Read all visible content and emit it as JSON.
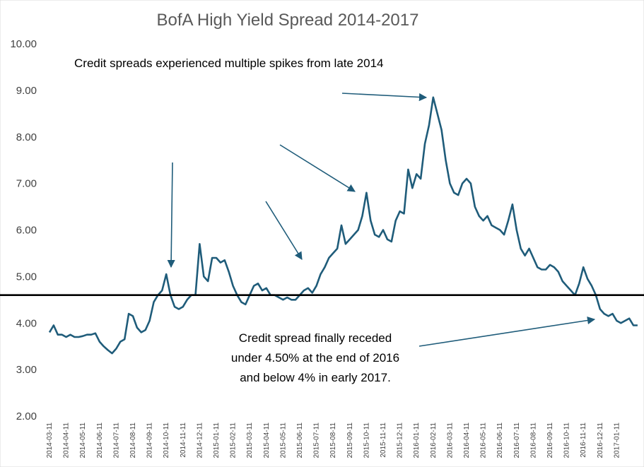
{
  "chart_data": {
    "type": "line",
    "title": "BofA High Yield Spread 2014-2017",
    "annotations": [
      "Credit spreads experienced multiple spikes from late 2014",
      [
        "Credit spread finally receded",
        "under 4.50% at the end of 2016",
        "and below 4% in early 2017."
      ]
    ],
    "categories": [
      "2014-03-11",
      null,
      null,
      null,
      "2014-04-11",
      null,
      null,
      null,
      "2014-05-11",
      null,
      null,
      null,
      "2014-06-11",
      null,
      null,
      null,
      "2014-07-11",
      null,
      null,
      null,
      "2014-08-11",
      null,
      null,
      null,
      "2014-09-11",
      null,
      null,
      null,
      "2014-10-11",
      null,
      null,
      null,
      "2014-11-11",
      null,
      null,
      null,
      "2014-12-11",
      null,
      null,
      null,
      "2015-01-11",
      null,
      null,
      null,
      "2015-02-11",
      null,
      null,
      null,
      "2015-03-11",
      null,
      null,
      null,
      "2015-04-11",
      null,
      null,
      null,
      "2015-05-11",
      null,
      null,
      null,
      "2015-06-11",
      null,
      null,
      null,
      "2015-07-11",
      null,
      null,
      null,
      "2015-08-11",
      null,
      null,
      null,
      "2015-09-11",
      null,
      null,
      null,
      "2015-10-11",
      null,
      null,
      null,
      "2015-11-11",
      null,
      null,
      null,
      "2015-12-11",
      null,
      null,
      null,
      "2016-01-11",
      null,
      null,
      null,
      "2016-02-11",
      null,
      null,
      null,
      "2016-03-11",
      null,
      null,
      null,
      "2016-04-11",
      null,
      null,
      null,
      "2016-05-11",
      null,
      null,
      null,
      "2016-06-11",
      null,
      null,
      null,
      "2016-07-11",
      null,
      null,
      null,
      "2016-08-11",
      null,
      null,
      null,
      "2016-09-11",
      null,
      null,
      null,
      "2016-10-11",
      null,
      null,
      null,
      "2016-11-11",
      null,
      null,
      null,
      "2016-12-11",
      null,
      null,
      null,
      "2017-01-11",
      null,
      null,
      null,
      null,
      null
    ],
    "series": [
      {
        "name": "BofA High Yield Spread",
        "color": "#1f5c7a",
        "values": [
          3.8,
          3.95,
          3.75,
          3.75,
          3.7,
          3.75,
          3.7,
          3.7,
          3.72,
          3.75,
          3.75,
          3.78,
          3.6,
          3.5,
          3.42,
          3.35,
          3.45,
          3.6,
          3.65,
          4.2,
          4.15,
          3.9,
          3.8,
          3.85,
          4.05,
          4.45,
          4.6,
          4.7,
          5.05,
          4.6,
          4.35,
          4.3,
          4.35,
          4.5,
          4.6,
          4.6,
          5.7,
          5.0,
          4.9,
          5.4,
          5.4,
          5.3,
          5.35,
          5.1,
          4.8,
          4.6,
          4.45,
          4.4,
          4.6,
          4.8,
          4.85,
          4.7,
          4.75,
          4.6,
          4.6,
          4.55,
          4.5,
          4.55,
          4.5,
          4.5,
          4.6,
          4.7,
          4.75,
          4.65,
          4.8,
          5.05,
          5.2,
          5.4,
          5.5,
          5.6,
          6.1,
          5.7,
          5.8,
          5.9,
          6.0,
          6.3,
          6.8,
          6.2,
          5.9,
          5.85,
          6.0,
          5.8,
          5.75,
          6.2,
          6.4,
          6.35,
          7.3,
          6.9,
          7.2,
          7.1,
          7.85,
          8.25,
          8.85,
          8.5,
          8.15,
          7.5,
          7.0,
          6.8,
          6.75,
          7.0,
          7.1,
          7.0,
          6.5,
          6.3,
          6.2,
          6.3,
          6.1,
          6.05,
          6.0,
          5.9,
          6.2,
          6.55,
          6.0,
          5.6,
          5.45,
          5.6,
          5.4,
          5.2,
          5.15,
          5.15,
          5.25,
          5.2,
          5.1,
          4.9,
          4.8,
          4.7,
          4.6,
          4.85,
          5.2,
          4.95,
          4.8,
          4.6,
          4.3,
          4.2,
          4.15,
          4.2,
          4.05,
          4.0,
          4.05,
          4.1,
          3.95,
          3.95
        ]
      }
    ],
    "reference_line": 4.6,
    "ylim": [
      2,
      10
    ],
    "yticks": [
      {
        "value": 2,
        "label": "2.00"
      },
      {
        "value": 3,
        "label": "3.00"
      },
      {
        "value": 4,
        "label": "4.00"
      },
      {
        "value": 5,
        "label": "5.00"
      },
      {
        "value": 6,
        "label": "6.00"
      },
      {
        "value": 7,
        "label": "7.00"
      },
      {
        "value": 8,
        "label": "8.00"
      },
      {
        "value": 9,
        "label": "9.00"
      },
      {
        "value": 10,
        "label": "10.00"
      }
    ],
    "grid": false
  }
}
